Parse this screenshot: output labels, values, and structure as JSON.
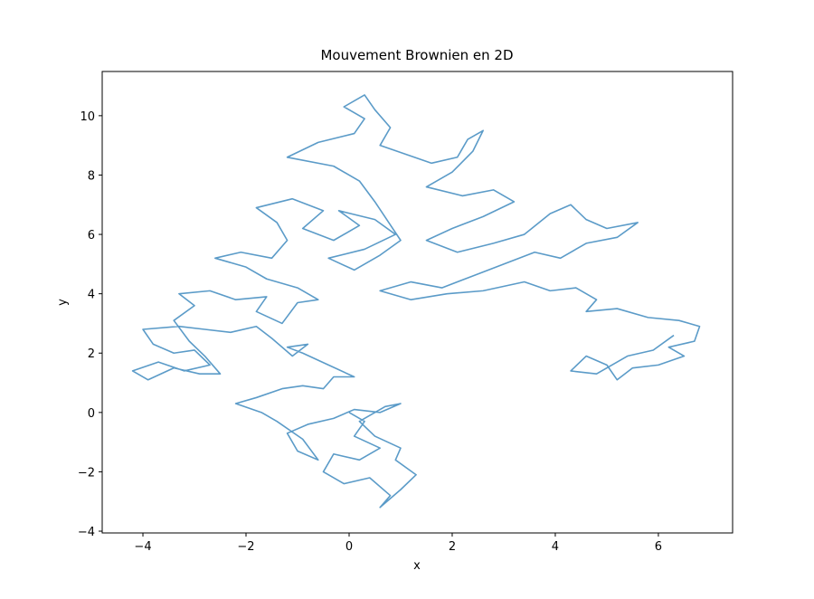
{
  "chart_data": {
    "type": "line",
    "title": "Mouvement Brownien en 2D",
    "x_label": "x",
    "y_label": "y",
    "color": "#5b9bc8",
    "xlim": [
      -4.79,
      7.44
    ],
    "ylim": [
      -4.06,
      11.49
    ],
    "xticks": [
      {
        "value": -4,
        "label": "−4"
      },
      {
        "value": -2,
        "label": "−2"
      },
      0,
      2,
      4,
      6
    ],
    "yticks": [
      {
        "value": -4,
        "label": "−4"
      },
      {
        "value": -2,
        "label": "−2"
      },
      0,
      2,
      4,
      6,
      8,
      10
    ],
    "x": [
      0,
      0.3,
      0.1,
      0.6,
      0.2,
      -0.3,
      -0.5,
      -0.1,
      0.4,
      0.8,
      0.6,
      1.0,
      1.3,
      0.9,
      1.0,
      0.5,
      0.2,
      0.7,
      1.0,
      0.6,
      0.1,
      -0.3,
      -0.8,
      -1.2,
      -1.0,
      -0.6,
      -0.9,
      -1.4,
      -1.7,
      -2.2,
      -1.8,
      -1.3,
      -0.9,
      -0.5,
      -0.3,
      0.1,
      -0.4,
      -0.9,
      -1.2,
      -0.8,
      -1.1,
      -1.5,
      -1.8,
      -2.3,
      -2.8,
      -3.3,
      -4.0,
      -3.8,
      -3.4,
      -3.0,
      -2.7,
      -3.2,
      -3.7,
      -4.2,
      -3.9,
      -3.4,
      -2.9,
      -2.5,
      -2.8,
      -3.1,
      -3.4,
      -3.0,
      -3.3,
      -2.7,
      -2.2,
      -1.6,
      -1.8,
      -1.3,
      -1.0,
      -0.6,
      -1.0,
      -1.6,
      -2.0,
      -2.6,
      -2.1,
      -1.5,
      -1.2,
      -1.4,
      -1.8,
      -1.1,
      -0.5,
      -0.9,
      -0.3,
      0.2,
      -0.2,
      0.5,
      0.9,
      0.3,
      -0.4,
      0.1,
      0.6,
      1.0,
      0.5,
      0.2,
      -0.3,
      -1.2,
      -0.6,
      0.1,
      0.3,
      -0.1,
      0.3,
      0.5,
      0.8,
      0.6,
      1.1,
      1.6,
      2.1,
      2.3,
      2.6,
      2.4,
      2.0,
      1.5,
      2.2,
      2.8,
      3.2,
      2.6,
      2.0,
      1.5,
      2.1,
      2.8,
      3.4,
      3.9,
      4.3,
      4.6,
      5.0,
      5.6,
      5.2,
      4.6,
      4.1,
      3.6,
      3.0,
      2.4,
      1.8,
      1.2,
      0.6,
      1.2,
      1.9,
      2.6,
      3.4,
      3.9,
      4.4,
      4.8,
      4.6,
      5.2,
      5.8,
      6.4,
      6.8,
      6.7,
      6.2,
      6.5,
      6.0,
      5.5,
      5.2,
      5.0,
      4.6,
      4.3,
      4.8,
      5.4,
      5.9,
      6.3
    ],
    "y": [
      0,
      -0.3,
      -0.8,
      -1.2,
      -1.6,
      -1.4,
      -2.0,
      -2.4,
      -2.2,
      -2.8,
      -3.2,
      -2.6,
      -2.1,
      -1.6,
      -1.2,
      -0.8,
      -0.3,
      0.2,
      0.3,
      0.0,
      0.1,
      -0.2,
      -0.4,
      -0.7,
      -1.3,
      -1.6,
      -0.9,
      -0.3,
      0.0,
      0.3,
      0.5,
      0.8,
      0.9,
      0.8,
      1.2,
      1.2,
      1.6,
      2.0,
      2.2,
      2.3,
      1.9,
      2.5,
      2.9,
      2.7,
      2.8,
      2.9,
      2.8,
      2.3,
      2.0,
      2.1,
      1.6,
      1.4,
      1.7,
      1.4,
      1.1,
      1.5,
      1.3,
      1.3,
      1.9,
      2.4,
      3.1,
      3.6,
      4.0,
      4.1,
      3.8,
      3.9,
      3.4,
      3.0,
      3.7,
      3.8,
      4.2,
      4.5,
      4.9,
      5.2,
      5.4,
      5.2,
      5.8,
      6.4,
      6.9,
      7.2,
      6.8,
      6.2,
      5.8,
      6.3,
      6.8,
      6.5,
      6.0,
      5.5,
      5.2,
      4.8,
      5.3,
      5.8,
      7.1,
      7.8,
      8.3,
      8.6,
      9.1,
      9.4,
      9.9,
      10.3,
      10.7,
      10.2,
      9.6,
      9.0,
      8.7,
      8.4,
      8.6,
      9.2,
      9.5,
      8.8,
      8.1,
      7.6,
      7.3,
      7.5,
      7.1,
      6.6,
      6.2,
      5.8,
      5.4,
      5.7,
      6.0,
      6.7,
      7.0,
      6.5,
      6.2,
      6.4,
      5.9,
      5.7,
      5.2,
      5.4,
      5.0,
      4.6,
      4.2,
      4.4,
      4.1,
      3.8,
      4.0,
      4.1,
      4.4,
      4.1,
      4.2,
      3.8,
      3.4,
      3.5,
      3.2,
      3.1,
      2.9,
      2.4,
      2.2,
      1.9,
      1.6,
      1.5,
      1.1,
      1.6,
      1.9,
      1.4,
      1.3,
      1.9,
      2.1,
      2.6
    ]
  }
}
